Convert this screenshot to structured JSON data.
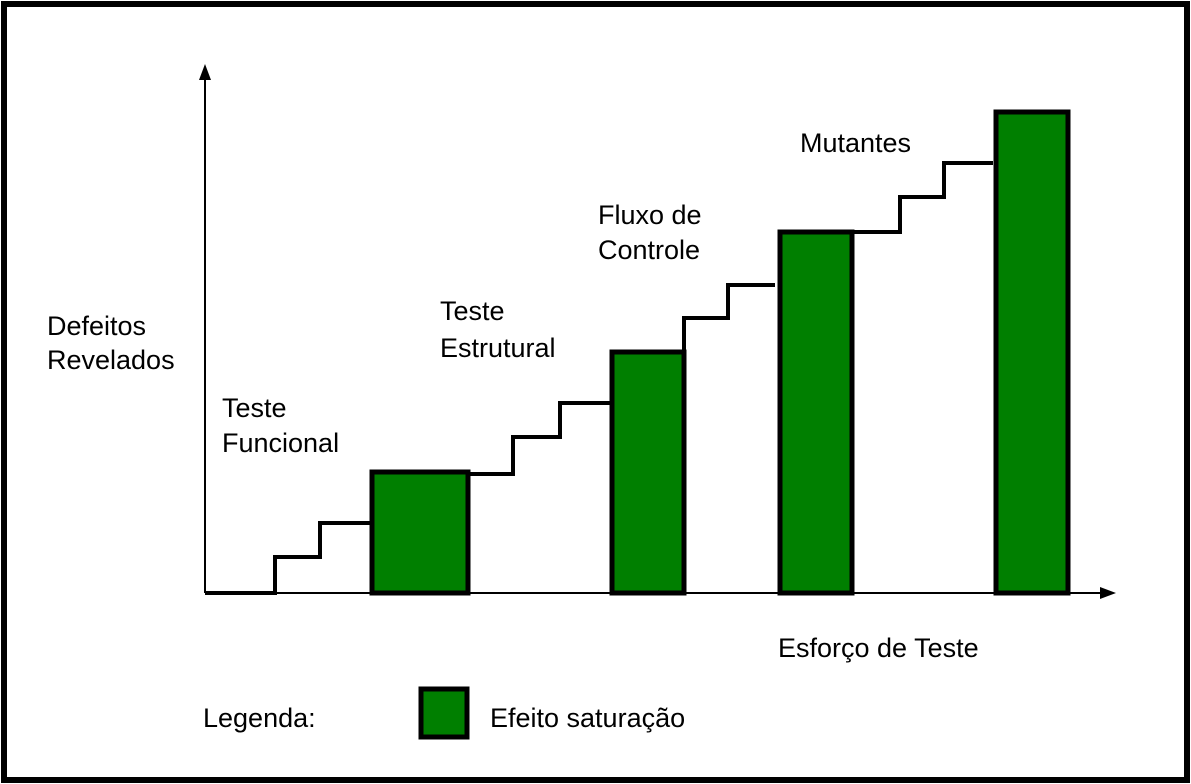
{
  "y_axis_label": [
    "Defeitos",
    "Revelados"
  ],
  "x_axis_label": "Esforço de Teste",
  "stages": [
    {
      "label": [
        "Teste",
        "Funcional"
      ]
    },
    {
      "label": [
        "Teste",
        "Estrutural"
      ]
    },
    {
      "label": [
        "Fluxo de",
        "Controle"
      ]
    },
    {
      "label": [
        "Mutantes"
      ]
    }
  ],
  "legend": {
    "title": "Legenda:",
    "item": "Efeito saturação"
  }
}
